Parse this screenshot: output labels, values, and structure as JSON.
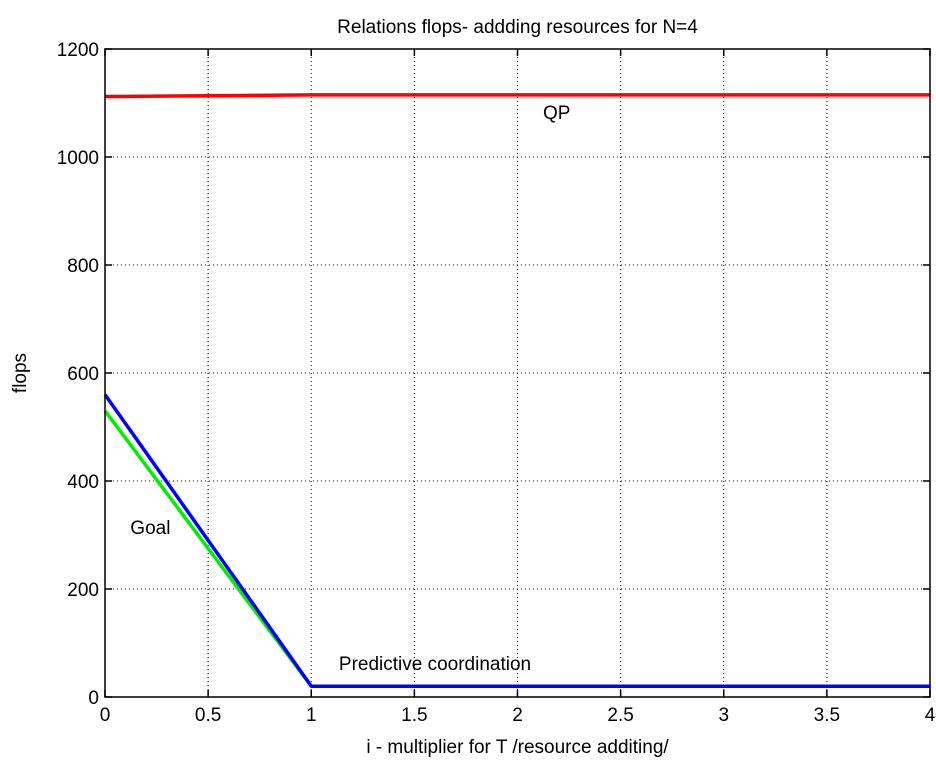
{
  "chart_data": {
    "type": "line",
    "title": "Relations flops- addding resources for N=4",
    "xlabel": "i - multiplier for T /resource additing/",
    "ylabel": "flops",
    "xlim": [
      0,
      4
    ],
    "ylim": [
      0,
      1200
    ],
    "xticks": [
      0,
      0.5,
      1,
      1.5,
      2,
      2.5,
      3,
      3.5,
      4
    ],
    "xtick_labels": [
      "0",
      "0.5",
      "1",
      "1.5",
      "2",
      "2.5",
      "3",
      "3.5",
      "4"
    ],
    "yticks": [
      0,
      200,
      400,
      600,
      800,
      1000,
      1200
    ],
    "ytick_labels": [
      "0",
      "200",
      "400",
      "600",
      "800",
      "1000",
      "1200"
    ],
    "grid": true,
    "series": [
      {
        "color": "#ff0000",
        "x": [
          0,
          1,
          2,
          3,
          4
        ],
        "y": [
          1112,
          1115,
          1115,
          1115,
          1115
        ]
      },
      {
        "color": "#00ee00",
        "x": [
          0,
          1,
          2,
          3,
          4
        ],
        "y": [
          530,
          20,
          20,
          20,
          20
        ]
      },
      {
        "color": "#0000ff",
        "x": [
          0,
          1,
          2,
          3,
          4
        ],
        "y": [
          560,
          20,
          20,
          20,
          20
        ]
      }
    ],
    "annotations": [
      {
        "text": "QP",
        "x": 2.19,
        "y": 1070
      },
      {
        "text": "Goal",
        "x": 0.22,
        "y": 302
      },
      {
        "text": "Predictive coordination",
        "x": 1.6,
        "y": 50
      }
    ]
  }
}
